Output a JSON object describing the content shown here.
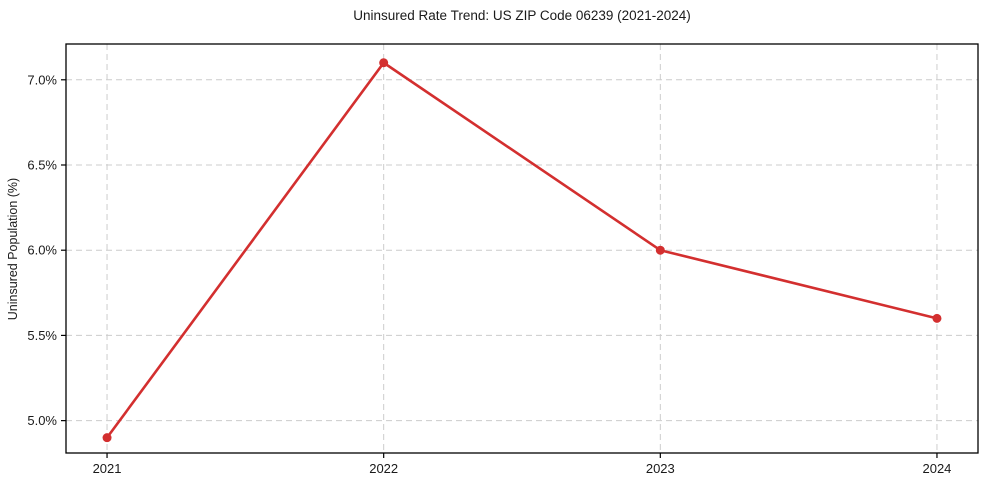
{
  "chart_data": {
    "type": "line",
    "title": "Uninsured Rate Trend: US ZIP Code 06239 (2021-2024)",
    "xlabel": "",
    "ylabel": "Uninsured Population (%)",
    "x": [
      "2021",
      "2022",
      "2023",
      "2024"
    ],
    "series": [
      {
        "name": "Uninsured Population (%)",
        "values": [
          4.9,
          7.1,
          6.0,
          5.6
        ]
      }
    ],
    "yticks": [
      5.0,
      5.5,
      6.0,
      6.5,
      7.0
    ],
    "ytick_labels": [
      "5.0%",
      "5.5%",
      "6.0%",
      "6.5%",
      "7.0%"
    ],
    "ylim": [
      4.81,
      7.21
    ],
    "grid": true,
    "grid_style": "dashed",
    "legend": "none",
    "colors": {
      "line": "#d32f2f",
      "marker": "#d32f2f",
      "grid": "#cccccc",
      "axis_border": "#000000",
      "text": "#1a1a1a",
      "background": "#ffffff"
    }
  }
}
